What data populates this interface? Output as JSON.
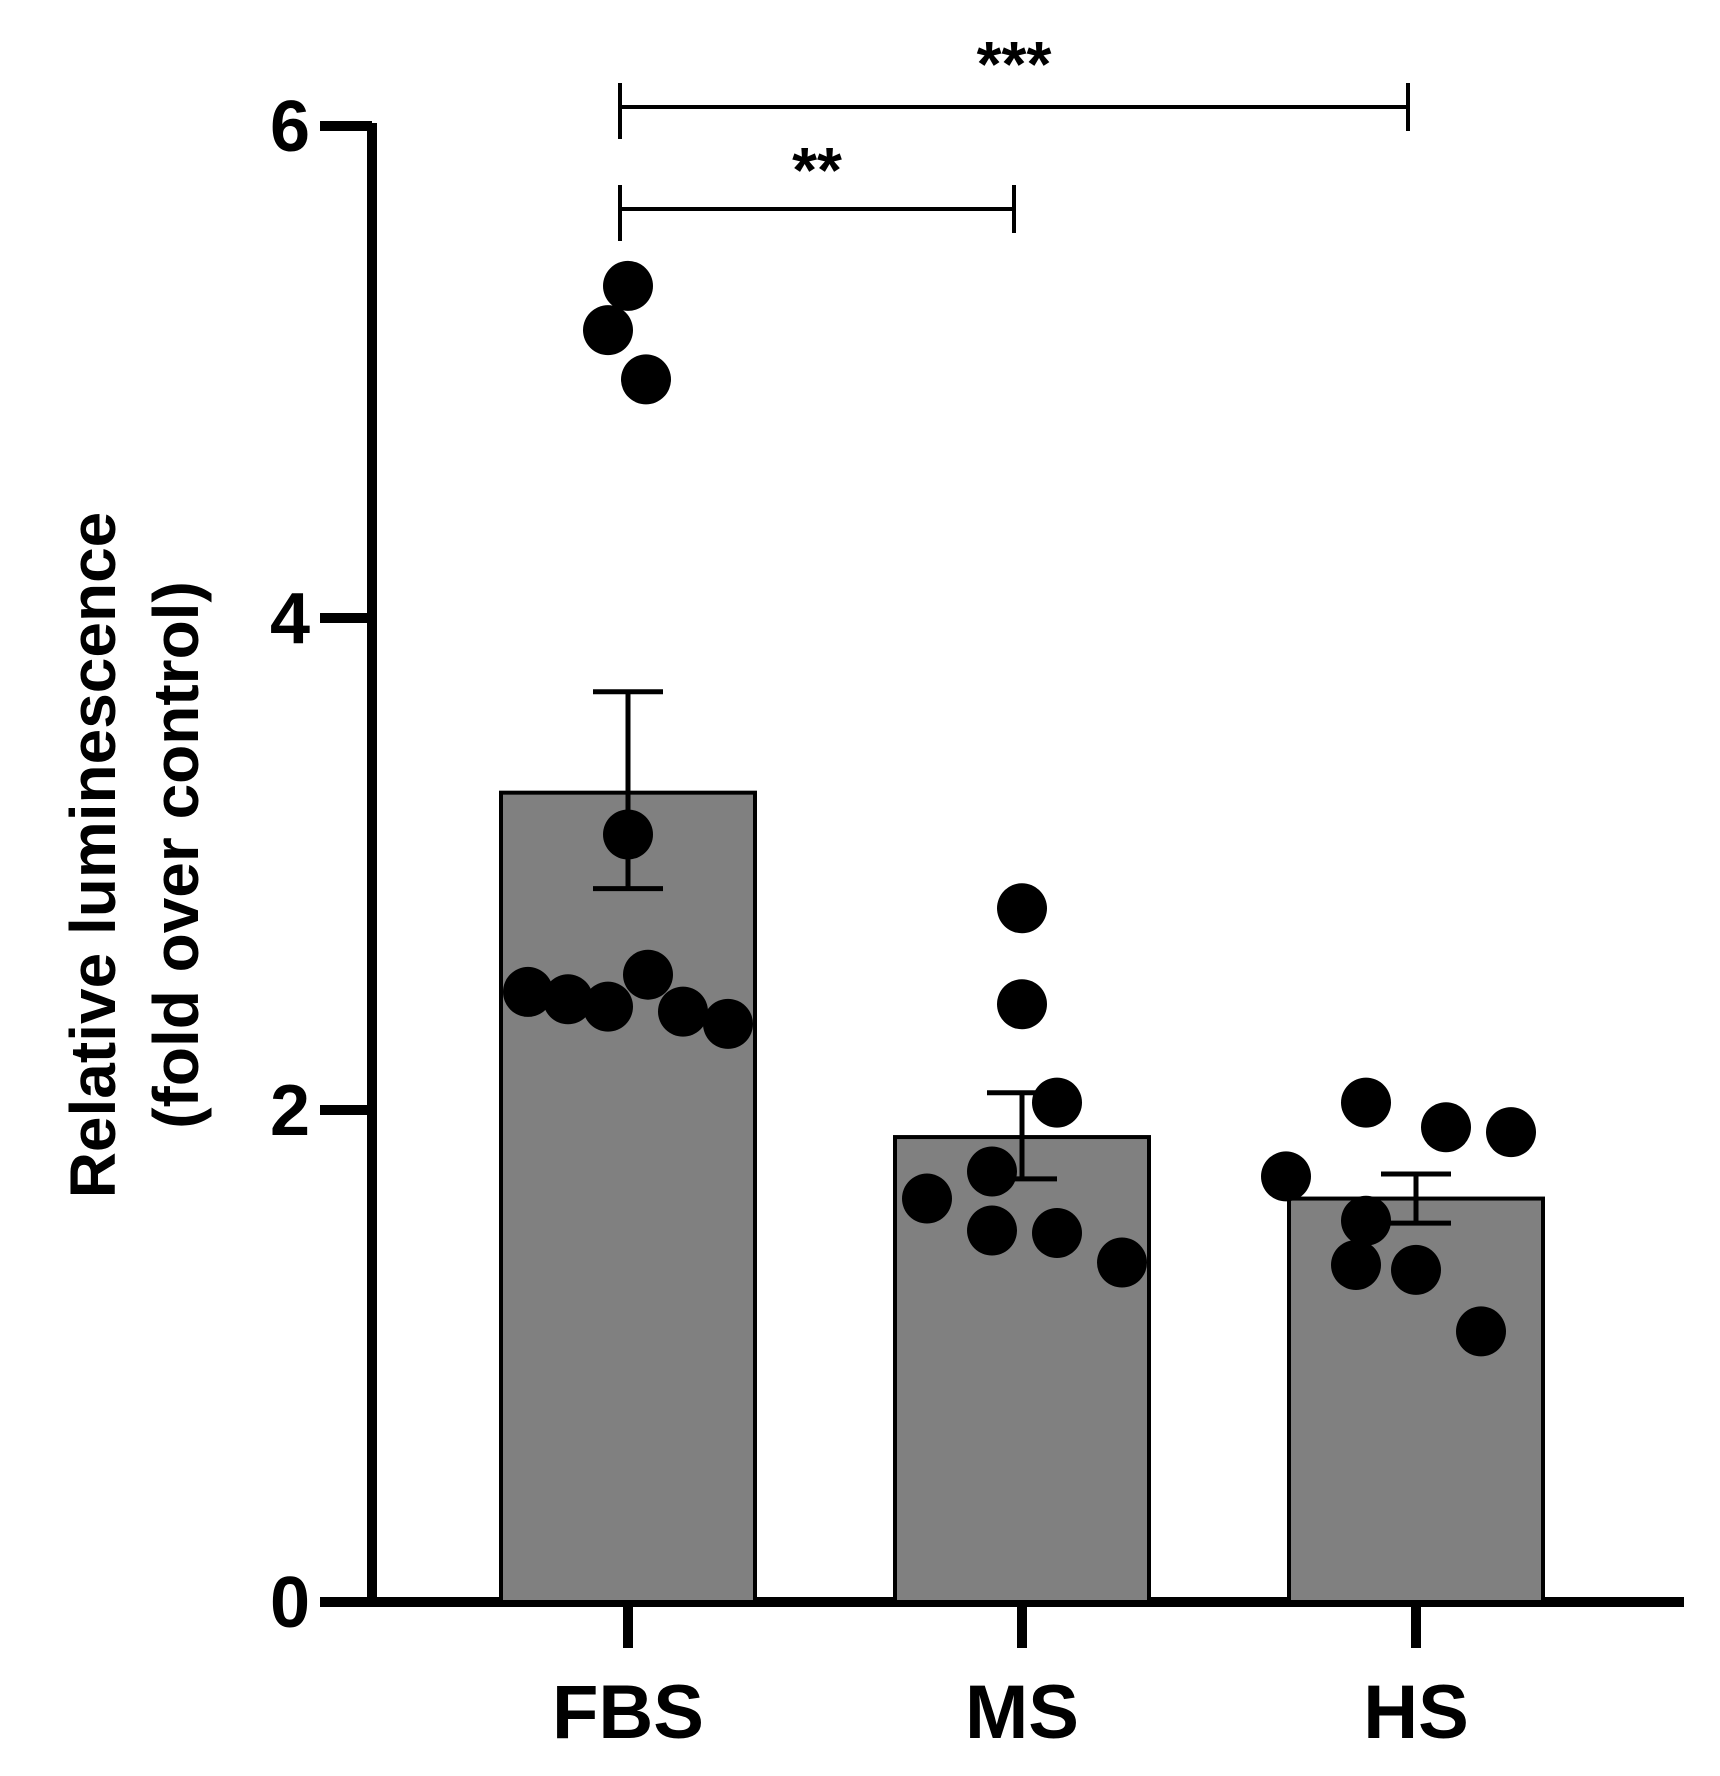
{
  "chart_data": {
    "type": "bar",
    "title": "",
    "xlabel": "",
    "ylabel": [
      "Relative luminescence",
      "(fold over control)"
    ],
    "ylim": [
      0,
      6
    ],
    "yticks": [
      0,
      2,
      4,
      6
    ],
    "grid": false,
    "categories": [
      "FBS",
      "MS",
      "HS"
    ],
    "values": [
      3.29,
      1.89,
      1.64
    ],
    "error_bars": [
      {
        "lower": 2.9,
        "upper": 3.7
      },
      {
        "lower": 1.72,
        "upper": 2.07
      },
      {
        "lower": 1.54,
        "upper": 1.74
      }
    ],
    "points": [
      [
        5.35,
        5.17,
        4.97,
        3.12,
        2.48,
        2.45,
        2.55,
        2.42,
        2.4,
        2.35
      ],
      [
        2.82,
        2.43,
        2.03,
        1.75,
        1.64,
        1.51,
        1.5,
        1.38
      ],
      [
        2.03,
        1.93,
        1.91,
        1.73,
        1.55,
        1.37,
        1.35,
        1.1
      ]
    ],
    "significance": [
      {
        "from": "FBS",
        "to": "MS",
        "label": "**"
      },
      {
        "from": "FBS",
        "to": "HS",
        "label": "***"
      }
    ],
    "colors": {
      "bar_fill": "#808080",
      "bar_stroke": "#000000",
      "point": "#000000",
      "axis": "#000000"
    }
  }
}
